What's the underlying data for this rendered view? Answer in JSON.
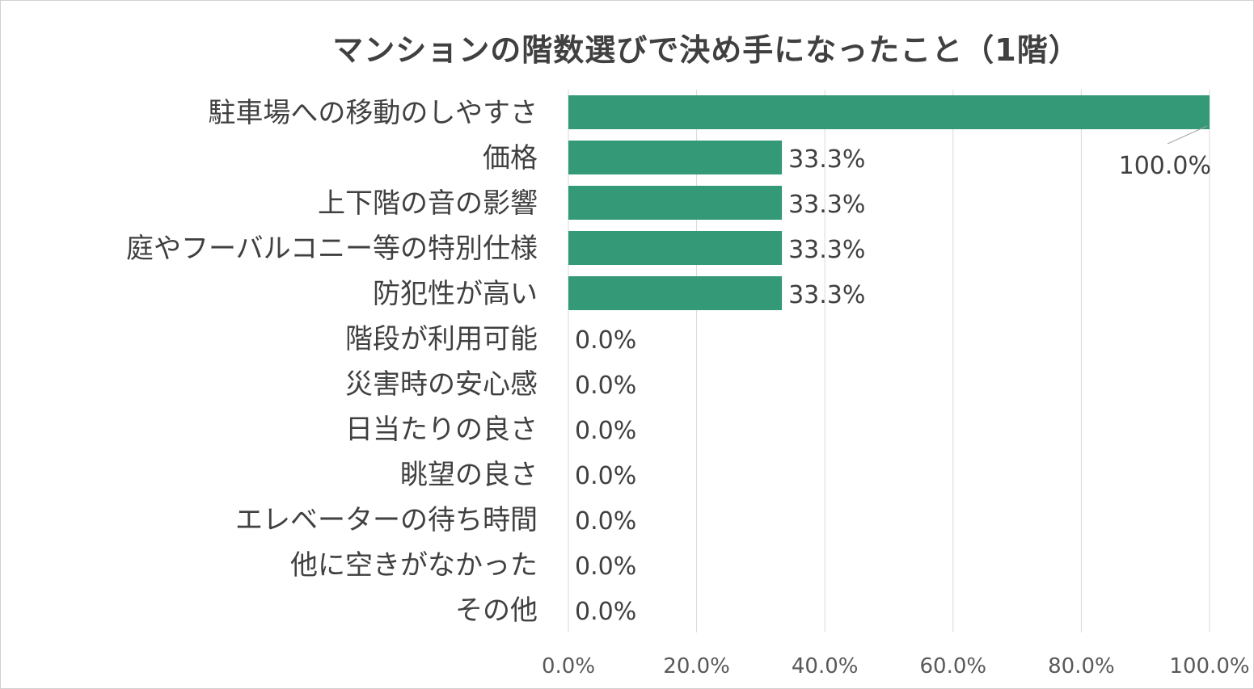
{
  "chart_data": {
    "type": "bar",
    "orientation": "horizontal",
    "title": "マンションの階数選びで決め手になったこと（1階）",
    "xlabel": "",
    "ylabel": "",
    "xlim": [
      0,
      100
    ],
    "x_ticks": [
      "0.0%",
      "20.0%",
      "40.0%",
      "60.0%",
      "80.0%",
      "100.0%"
    ],
    "grid": "vertical",
    "legend": "none",
    "bar_color": "#339977",
    "gridline_color": "#d9d9d9",
    "categories": [
      "駐車場への移動のしやすさ",
      "価格",
      "上下階の音の影響",
      "庭やフーバルコニー等の特別仕様",
      "防犯性が高い",
      "階段が利用可能",
      "災害時の安心感",
      "日当たりの良さ",
      "眺望の良さ",
      "エレベーターの待ち時間",
      "他に空きがなかった",
      "その他"
    ],
    "values": [
      100.0,
      33.3,
      33.3,
      33.3,
      33.3,
      0.0,
      0.0,
      0.0,
      0.0,
      0.0,
      0.0,
      0.0
    ],
    "data_labels": [
      "100.0%",
      "33.3%",
      "33.3%",
      "33.3%",
      "33.3%",
      "0.0%",
      "0.0%",
      "0.0%",
      "0.0%",
      "0.0%",
      "0.0%",
      "0.0%"
    ]
  }
}
